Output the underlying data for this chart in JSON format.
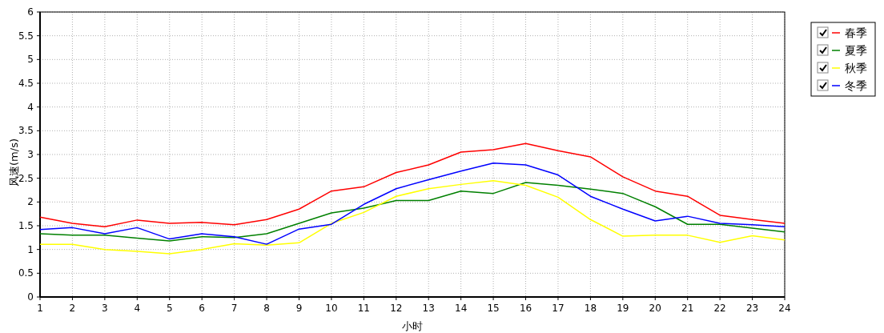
{
  "chart_data": {
    "type": "line",
    "xlabel": "小时",
    "ylabel": "风速(m/s)",
    "x": [
      1,
      2,
      3,
      4,
      5,
      6,
      7,
      8,
      9,
      10,
      11,
      12,
      13,
      14,
      15,
      16,
      17,
      18,
      19,
      20,
      21,
      22,
      23,
      24
    ],
    "xlim": [
      1,
      24
    ],
    "xticks": [
      1,
      2,
      3,
      4,
      5,
      6,
      7,
      8,
      9,
      10,
      11,
      12,
      13,
      14,
      15,
      16,
      17,
      18,
      19,
      20,
      21,
      22,
      23,
      24
    ],
    "ylim": [
      0,
      6
    ],
    "yticks": [
      0,
      0.5,
      1,
      1.5,
      2,
      2.5,
      3,
      3.5,
      4,
      4.5,
      5,
      5.5,
      6
    ],
    "grid": true,
    "legend": "right",
    "marker": "none",
    "line_style": "solid",
    "series": [
      {
        "name": "春季",
        "color": "#ff0000",
        "values": [
          1.68,
          1.55,
          1.48,
          1.62,
          1.55,
          1.57,
          1.52,
          1.63,
          1.85,
          2.23,
          2.32,
          2.62,
          2.78,
          3.05,
          3.1,
          3.23,
          3.08,
          2.95,
          2.53,
          2.23,
          2.12,
          1.72,
          1.63,
          1.55
        ]
      },
      {
        "name": "夏季",
        "color": "#008000",
        "values": [
          1.33,
          1.3,
          1.3,
          1.24,
          1.18,
          1.27,
          1.25,
          1.33,
          1.55,
          1.77,
          1.87,
          2.03,
          2.03,
          2.23,
          2.18,
          2.41,
          2.35,
          2.27,
          2.18,
          1.9,
          1.53,
          1.53,
          1.45,
          1.37
        ]
      },
      {
        "name": "秋季",
        "color": "#ffff00",
        "values": [
          1.11,
          1.11,
          1.0,
          0.96,
          0.91,
          1.0,
          1.12,
          1.09,
          1.14,
          1.55,
          1.78,
          2.12,
          2.28,
          2.37,
          2.45,
          2.35,
          2.1,
          1.63,
          1.28,
          1.3,
          1.3,
          1.15,
          1.29,
          1.2
        ]
      },
      {
        "name": "冬季",
        "color": "#0000ff",
        "values": [
          1.42,
          1.46,
          1.33,
          1.46,
          1.22,
          1.33,
          1.27,
          1.11,
          1.43,
          1.53,
          1.95,
          2.28,
          2.47,
          2.65,
          2.82,
          2.78,
          2.57,
          2.12,
          1.85,
          1.6,
          1.7,
          1.55,
          1.52,
          1.48
        ]
      }
    ]
  }
}
